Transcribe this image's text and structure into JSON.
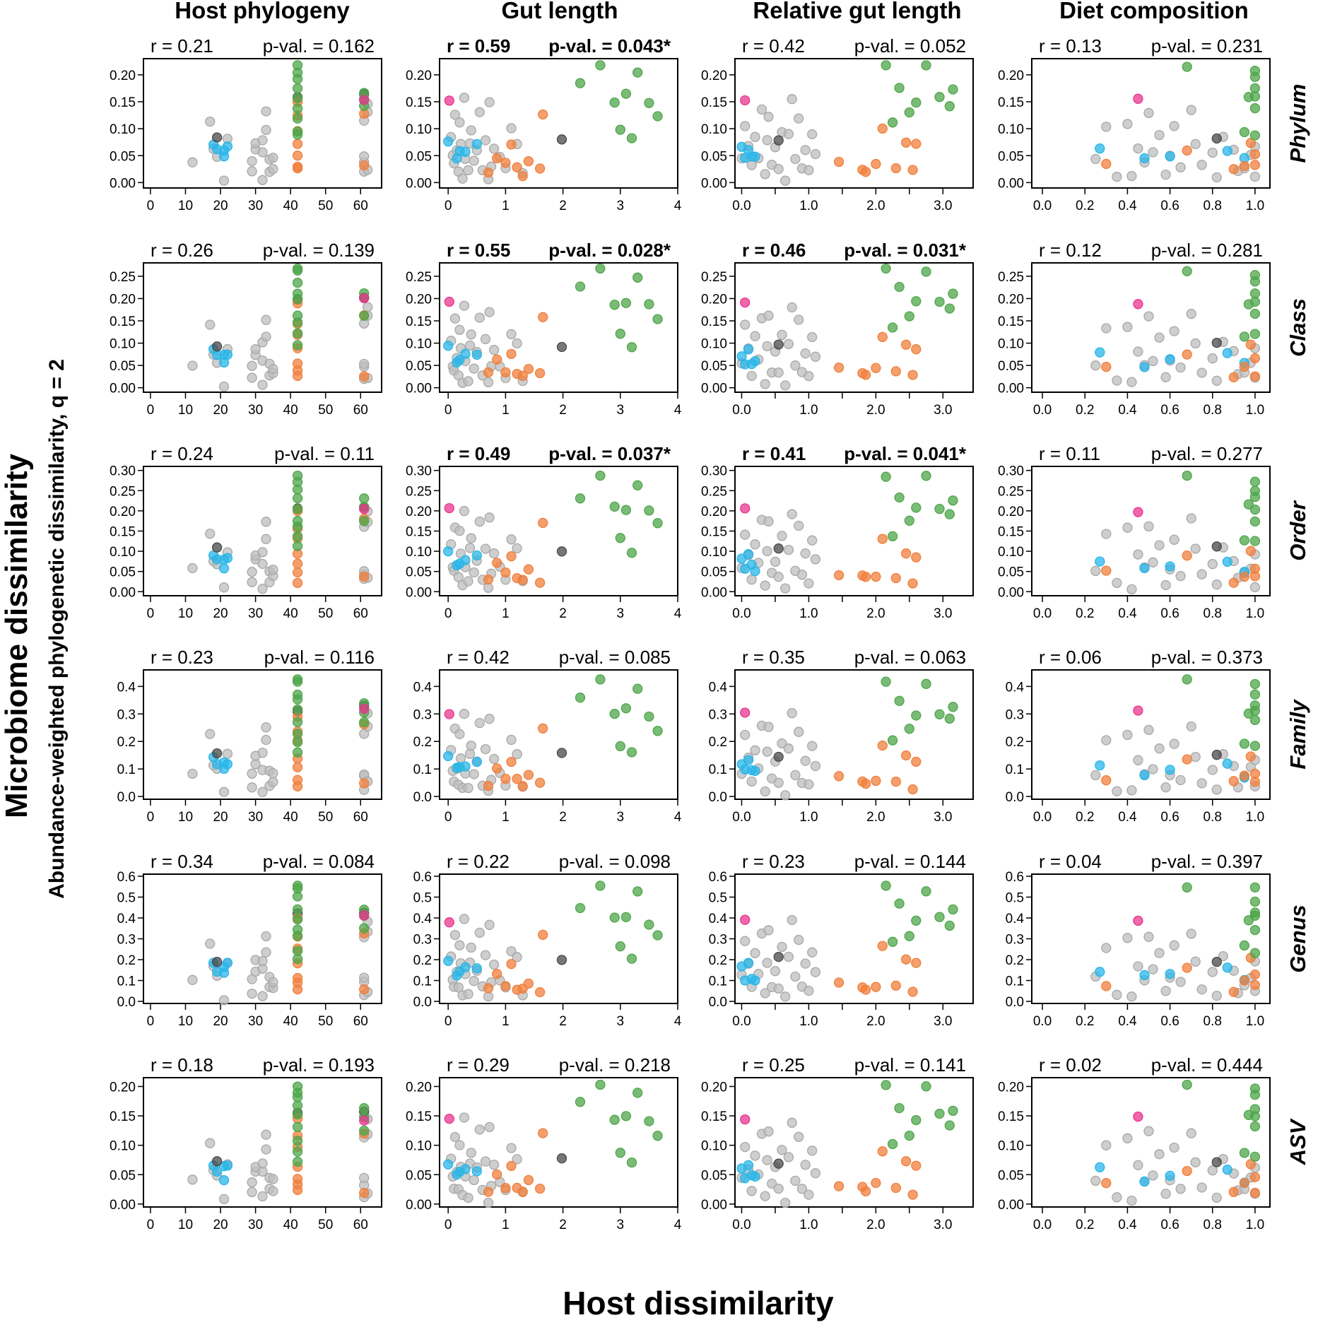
{
  "chart_data": {
    "type": "scatter",
    "title": "",
    "xlabel": "Host dissimilarity",
    "ylabel": "Microbiome dissimilarity",
    "ylabel_sub": "Abundance-weighted phylogenetic dissimilarity, q = 2",
    "columns": [
      {
        "title": "Host phylogeny",
        "xlim": [
          -2,
          66
        ],
        "xticks": [
          0,
          10,
          20,
          30,
          40,
          50,
          60
        ],
        "xtick_labels": [
          "0",
          "10",
          "20",
          "30",
          "40",
          "50",
          "60"
        ]
      },
      {
        "title": "Gut length",
        "xlim": [
          -0.15,
          4.0
        ],
        "xticks": [
          0,
          1,
          2,
          3,
          4
        ],
        "xtick_labels": [
          "0",
          "1",
          "2",
          "3",
          "4"
        ]
      },
      {
        "title": "Relative gut length",
        "xlim": [
          -0.1,
          3.45
        ],
        "xticks": [
          0,
          0.5,
          1,
          1.5,
          2,
          2.5,
          3
        ],
        "xtick_labels": [
          "0.0",
          "",
          "1.0",
          "",
          "2.0",
          "",
          "3.0"
        ]
      },
      {
        "title": "Diet composition",
        "xlim": [
          -0.05,
          1.07
        ],
        "xticks": [
          0,
          0.2,
          0.4,
          0.6,
          0.8,
          1.0
        ],
        "xtick_labels": [
          "0.0",
          "0.2",
          "0.4",
          "0.6",
          "0.8",
          "1.0"
        ]
      }
    ],
    "rows": [
      {
        "label": "Phylum",
        "ylim": [
          -0.01,
          0.23
        ],
        "yticks": [
          "0.00",
          "0.05",
          "0.10",
          "0.15",
          "0.20"
        ],
        "ymax": 0.22
      },
      {
        "label": "Class",
        "ylim": [
          -0.01,
          0.28
        ],
        "yticks": [
          "0.00",
          "0.05",
          "0.10",
          "0.15",
          "0.20",
          "0.25"
        ],
        "ymax": 0.27
      },
      {
        "label": "Order",
        "ylim": [
          -0.01,
          0.31
        ],
        "yticks": [
          "0.00",
          "0.05",
          "0.10",
          "0.15",
          "0.20",
          "0.25",
          "0.30"
        ],
        "ymax": 0.29
      },
      {
        "label": "Family",
        "ylim": [
          -0.01,
          0.46
        ],
        "yticks": [
          "0.0",
          "0.1",
          "0.2",
          "0.3",
          "0.4"
        ],
        "ymax": 0.43
      },
      {
        "label": "Genus",
        "ylim": [
          -0.01,
          0.61
        ],
        "yticks": [
          "0.0",
          "0.1",
          "0.2",
          "0.3",
          "0.4",
          "0.5",
          "0.6"
        ],
        "ymax": 0.56
      },
      {
        "label": "ASV",
        "ylim": [
          -0.005,
          0.215
        ],
        "yticks": [
          "0.00",
          "0.05",
          "0.10",
          "0.15",
          "0.20"
        ],
        "ymax": 0.205
      }
    ],
    "stats": [
      [
        {
          "r": "r = 0.21",
          "p": "p-val. = 0.162",
          "sig": false
        },
        {
          "r": "r = 0.59",
          "p": "p-val. = 0.043*",
          "sig": true
        },
        {
          "r": "r = 0.42",
          "p": "p-val. = 0.052",
          "sig": false
        },
        {
          "r": "r = 0.13",
          "p": "p-val. = 0.231",
          "sig": false
        }
      ],
      [
        {
          "r": "r = 0.26",
          "p": "p-val. = 0.139",
          "sig": false
        },
        {
          "r": "r = 0.55",
          "p": "p-val. = 0.028*",
          "sig": true
        },
        {
          "r": "r = 0.46",
          "p": "p-val. = 0.031*",
          "sig": true
        },
        {
          "r": "r = 0.12",
          "p": "p-val. = 0.281",
          "sig": false
        }
      ],
      [
        {
          "r": "r = 0.24",
          "p": "p-val. = 0.11",
          "sig": false
        },
        {
          "r": "r = 0.49",
          "p": "p-val. = 0.037*",
          "sig": true
        },
        {
          "r": "r = 0.41",
          "p": "p-val. = 0.041*",
          "sig": true
        },
        {
          "r": "r = 0.11",
          "p": "p-val. = 0.277",
          "sig": false
        }
      ],
      [
        {
          "r": "r = 0.23",
          "p": "p-val. = 0.116",
          "sig": false
        },
        {
          "r": "r = 0.42",
          "p": "p-val. = 0.085",
          "sig": false
        },
        {
          "r": "r = 0.35",
          "p": "p-val. = 0.063",
          "sig": false
        },
        {
          "r": "r = 0.06",
          "p": "p-val. = 0.373",
          "sig": false
        }
      ],
      [
        {
          "r": "r = 0.34",
          "p": "p-val. = 0.084",
          "sig": false
        },
        {
          "r": "r = 0.22",
          "p": "p-val. = 0.098",
          "sig": false
        },
        {
          "r": "r = 0.23",
          "p": "p-val. = 0.144",
          "sig": false
        },
        {
          "r": "r = 0.04",
          "p": "p-val. = 0.397",
          "sig": false
        }
      ],
      [
        {
          "r": "r = 0.18",
          "p": "p-val. = 0.193",
          "sig": false
        },
        {
          "r": "r = 0.29",
          "p": "p-val. = 0.218",
          "sig": false
        },
        {
          "r": "r = 0.25",
          "p": "p-val. = 0.141",
          "sig": false
        },
        {
          "r": "r = 0.02",
          "p": "p-val. = 0.444",
          "sig": false
        }
      ]
    ],
    "colors": {
      "gray": "#bdbdbd",
      "blue": "#29b6e8",
      "orange": "#f07f3c",
      "green": "#4ea64a",
      "black": "#4a4a4a",
      "pink": "#e8368f"
    },
    "points_normalized": [
      {
        "g": "gray",
        "x": [
          12,
          17,
          18,
          19,
          21,
          22,
          29,
          29,
          30,
          30,
          32,
          32,
          32,
          33,
          33,
          34,
          34,
          35,
          35,
          61,
          61,
          61,
          61,
          62,
          62,
          62
        ],
        "y": [
          0.19,
          0.5,
          0.28,
          0.22,
          0.03,
          0.35,
          0.08,
          0.18,
          0.28,
          0.33,
          0.05,
          0.25,
          0.35,
          0.45,
          0.58,
          0.1,
          0.2,
          0.13,
          0.18,
          0.08,
          0.15,
          0.2,
          0.55,
          0.1,
          0.57,
          0.68
        ]
      },
      {
        "g": "blue",
        "x": [
          18,
          19,
          21,
          21,
          22
        ],
        "y": [
          0.32,
          0.28,
          0.22,
          0.3,
          0.3
        ]
      },
      {
        "g": "black",
        "x": [
          19,
          42,
          61
        ],
        "y": [
          0.36,
          0.73,
          0.75
        ]
      },
      {
        "g": "orange",
        "x": [
          42,
          42,
          42,
          42,
          42,
          42,
          42,
          61,
          61
        ],
        "y": [
          0.1,
          0.16,
          0.22,
          0.3,
          0.45,
          0.55,
          0.7,
          0.12,
          0.6
        ]
      },
      {
        "g": "green",
        "x": [
          42,
          42,
          42,
          42,
          42,
          42,
          42,
          42,
          42,
          61,
          61,
          61
        ],
        "y": [
          0.38,
          0.45,
          0.55,
          0.62,
          0.72,
          0.8,
          0.87,
          0.95,
          0.99,
          0.62,
          0.72,
          0.77
        ]
      },
      {
        "g": "pink",
        "x": [
          61
        ],
        "y": [
          0.72
        ]
      }
    ]
  }
}
